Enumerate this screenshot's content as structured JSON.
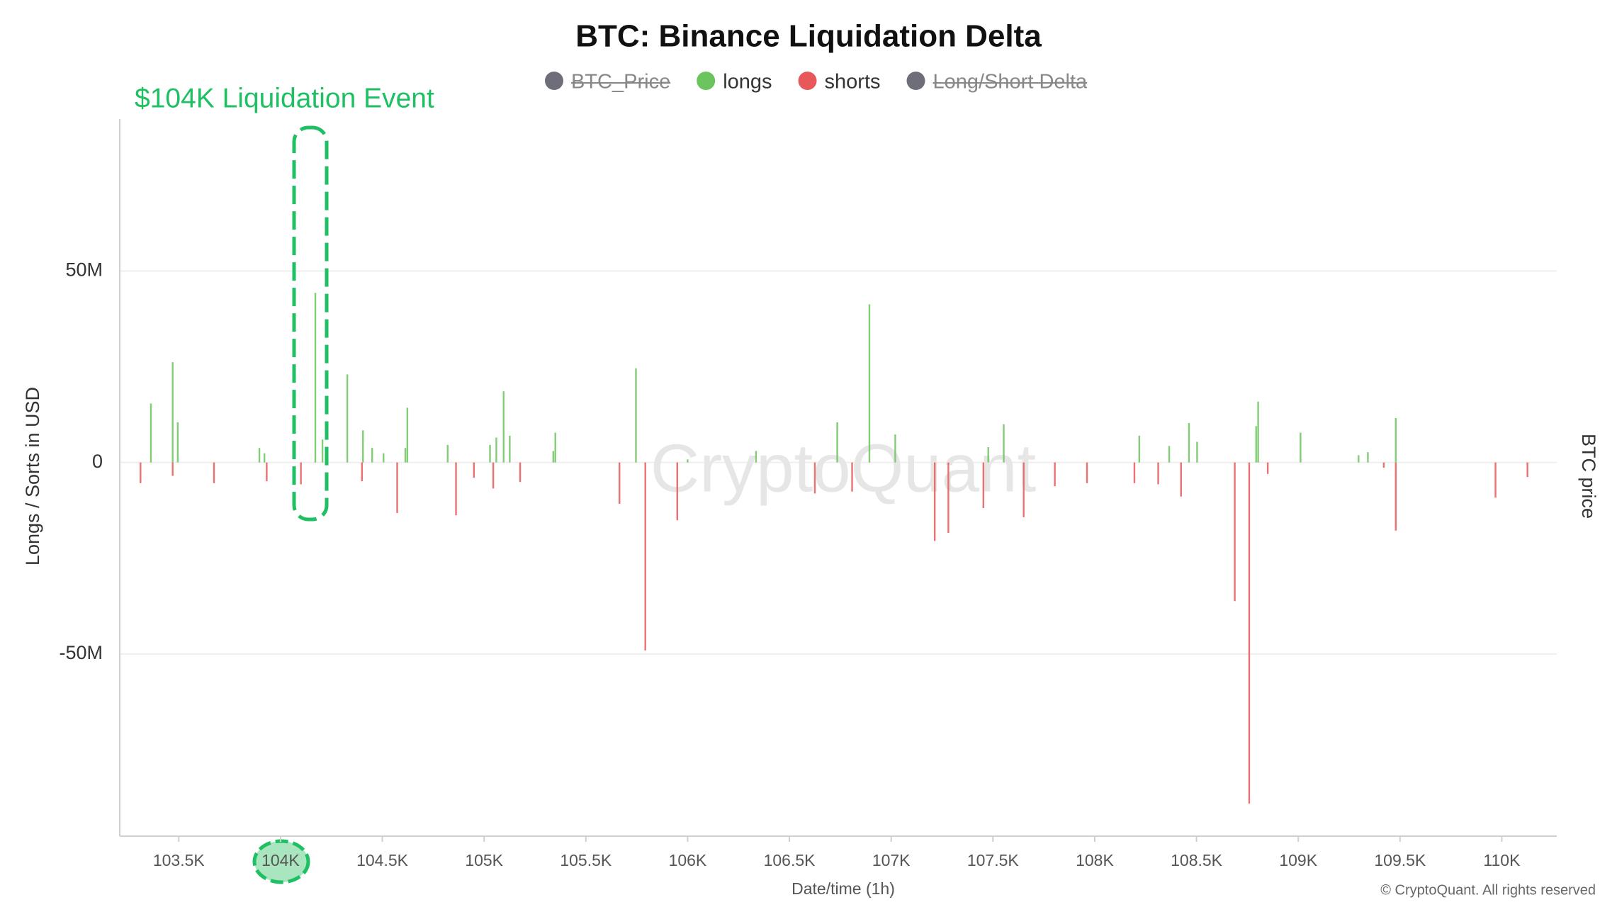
{
  "chart_data": {
    "type": "bar",
    "title": "BTC: Binance Liquidation Delta",
    "annotation": "$104K Liquidation Event",
    "x_label": "Date/time (1h)",
    "y_label": "Longs / Sorts in USD",
    "y2_label": "BTC price",
    "watermark": "CryptoQuant",
    "credit": "© CryptoQuant. All rights reserved",
    "xlim": [
      103210,
      110270
    ],
    "ylim": [
      -97600000,
      89700000
    ],
    "grid": true,
    "xticks": [
      {
        "value": 103500,
        "label": "103.5K"
      },
      {
        "value": 104000,
        "label": "104K"
      },
      {
        "value": 104500,
        "label": "104.5K"
      },
      {
        "value": 105000,
        "label": "105K"
      },
      {
        "value": 105500,
        "label": "105.5K"
      },
      {
        "value": 106000,
        "label": "106K"
      },
      {
        "value": 106500,
        "label": "106.5K"
      },
      {
        "value": 107000,
        "label": "107K"
      },
      {
        "value": 107500,
        "label": "107.5K"
      },
      {
        "value": 108000,
        "label": "108K"
      },
      {
        "value": 108500,
        "label": "108.5K"
      },
      {
        "value": 109000,
        "label": "109K"
      },
      {
        "value": 109500,
        "label": "109.5K"
      },
      {
        "value": 110000,
        "label": "110K"
      }
    ],
    "yticks": [
      {
        "value": -50000000,
        "label": "-50M"
      },
      0,
      {
        "value": 50000000,
        "label": "50M"
      }
    ],
    "series": [
      {
        "name": "BTC_Price",
        "color": "#6e6e7a",
        "hidden": true
      },
      {
        "name": "longs",
        "color": "#6cc45e",
        "x": [
          103363,
          103470,
          103495,
          103896,
          103921,
          104171,
          104206,
          104328,
          104405,
          104450,
          104506,
          104613,
          104623,
          104821,
          105029,
          105060,
          105096,
          105126,
          105340,
          105350,
          105746,
          106000,
          106336,
          106735,
          106893,
          107020,
          107477,
          107553,
          108219,
          108366,
          108463,
          108503,
          108793,
          108803,
          109011,
          109296,
          109342,
          109479
        ],
        "values": [
          15400000,
          26200000,
          10500000,
          3800000,
          2400000,
          44300000,
          6000000,
          23000000,
          8400000,
          3800000,
          2400000,
          3800000,
          14300000,
          4600000,
          4600000,
          6500000,
          18600000,
          7000000,
          3000000,
          7800000,
          24600000,
          800000,
          3000000,
          10500000,
          41300000,
          7300000,
          4000000,
          10000000,
          7000000,
          4300000,
          10300000,
          5400000,
          9500000,
          15900000,
          7800000,
          1900000,
          2700000,
          11600000
        ]
      },
      {
        "name": "shorts",
        "color": "#e8585a",
        "x": [
          103312,
          103470,
          103673,
          103932,
          104100,
          104400,
          104573,
          104862,
          104950,
          105045,
          105177,
          105665,
          105792,
          105949,
          106625,
          106808,
          107214,
          107281,
          107453,
          107651,
          107804,
          107962,
          108195,
          108312,
          108424,
          108688,
          108759,
          108850,
          109420,
          109479,
          109969,
          110126
        ],
        "values": [
          -5400000,
          -3500000,
          -5400000,
          -4900000,
          -5700000,
          -4900000,
          -13200000,
          -13800000,
          -4000000,
          -6800000,
          -5100000,
          -10800000,
          -49100000,
          -15100000,
          -8100000,
          -7600000,
          -20500000,
          -18400000,
          -11900000,
          -14300000,
          -6200000,
          -5400000,
          -5400000,
          -5700000,
          -8900000,
          -36200000,
          -89100000,
          -3000000,
          -1350000,
          -17800000,
          -9200000,
          -3800000
        ]
      },
      {
        "name": "Long/Short Delta",
        "color": "#6e6e7a",
        "hidden": true
      }
    ]
  }
}
